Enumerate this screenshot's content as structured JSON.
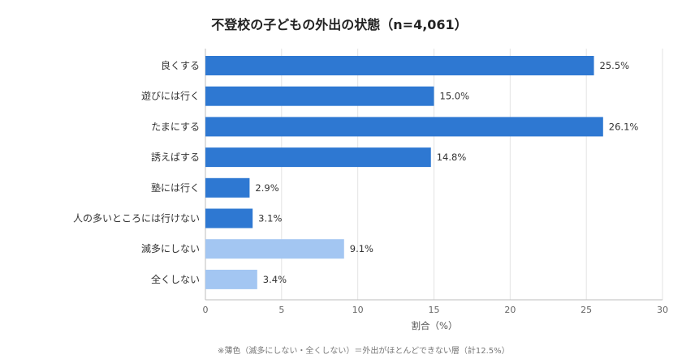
{
  "chart_data": {
    "type": "bar",
    "orientation": "horizontal",
    "title": "不登校の子どもの外出の状態（n=4,061）",
    "xlabel": "割合（%）",
    "ylabel": "",
    "categories": [
      "良くする",
      "遊びには行く",
      "たまにする",
      "誘えばする",
      "塾には行く",
      "人の多いところには行けない",
      "滅多にしない",
      "全くしない"
    ],
    "values": [
      25.5,
      15.0,
      26.1,
      14.8,
      2.9,
      3.1,
      9.1,
      3.4
    ],
    "value_labels": [
      "25.5%",
      "15.0%",
      "26.1%",
      "14.8%",
      "2.9%",
      "3.1%",
      "9.1%",
      "3.4%"
    ],
    "xlim": [
      0,
      30
    ],
    "xticks": [
      0,
      5,
      10,
      15,
      20,
      25,
      30
    ],
    "grid": true,
    "colors": {
      "dark": "#2E78D2",
      "light": "#A3C6F2",
      "grid": "#E3E3E3"
    },
    "light_categories": [
      "滅多にしない",
      "全くしない"
    ],
    "footnote": "※薄色（滅多にしない・全くしない）＝外出がほとんどできない層（計12.5%）"
  }
}
